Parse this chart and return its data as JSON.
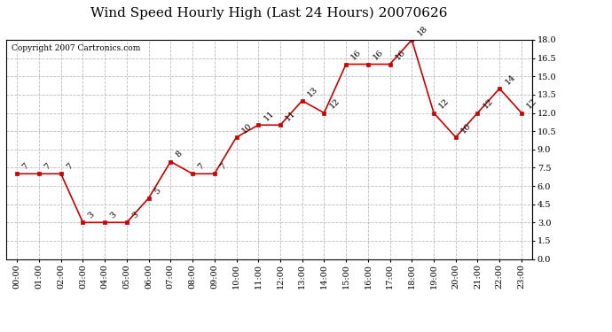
{
  "title": "Wind Speed Hourly High (Last 24 Hours) 20070626",
  "copyright": "Copyright 2007 Cartronics.com",
  "hours": [
    "00:00",
    "01:00",
    "02:00",
    "03:00",
    "04:00",
    "05:00",
    "06:00",
    "07:00",
    "08:00",
    "09:00",
    "10:00",
    "11:00",
    "12:00",
    "13:00",
    "14:00",
    "15:00",
    "16:00",
    "17:00",
    "18:00",
    "19:00",
    "20:00",
    "21:00",
    "22:00",
    "23:00"
  ],
  "values": [
    7,
    7,
    7,
    3,
    3,
    3,
    5,
    8,
    7,
    7,
    10,
    11,
    11,
    13,
    12,
    16,
    16,
    16,
    18,
    12,
    10,
    12,
    14,
    12
  ],
  "ylim": [
    0,
    18.0
  ],
  "yticks": [
    0.0,
    1.5,
    3.0,
    4.5,
    6.0,
    7.5,
    9.0,
    10.5,
    12.0,
    13.5,
    15.0,
    16.5,
    18.0
  ],
  "line_color": "#cc0000",
  "marker_color": "#cc0000",
  "grid_color": "#bbbbbb",
  "bg_color": "#ffffff",
  "title_fontsize": 11,
  "label_fontsize": 7,
  "annotation_fontsize": 7,
  "copyright_fontsize": 6.5
}
